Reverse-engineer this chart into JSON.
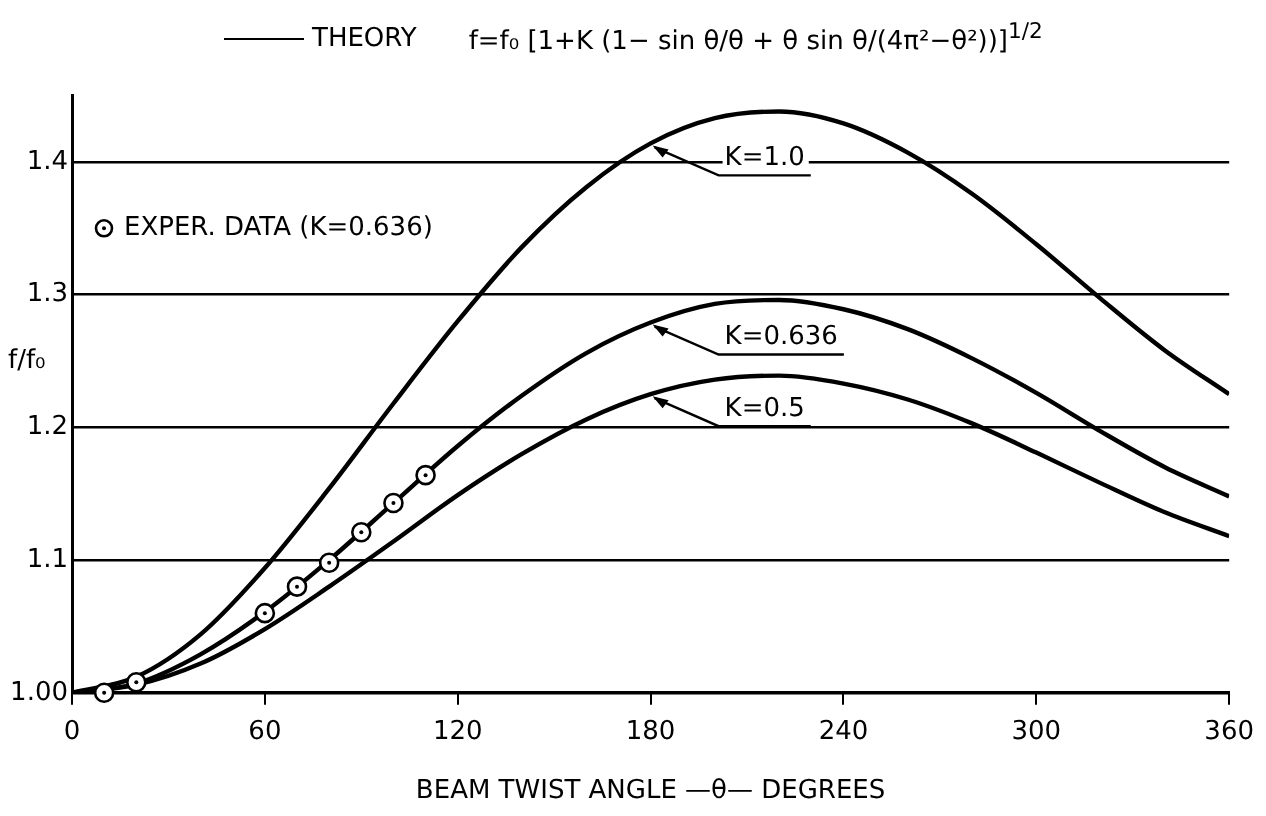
{
  "chart_data": {
    "type": "line",
    "title": "THEORY",
    "subtitle": "f=f₀ [1+K (1− sin θ/θ + θ sin θ/(4π²−θ²))]$^{1/2}$",
    "xlabel": "BEAM TWIST ANGLE —θ— DEGREES",
    "ylabel": "f/f₀",
    "xlim": [
      0,
      360
    ],
    "xticks": [
      0,
      60,
      120,
      180,
      240,
      300,
      360
    ],
    "ylim": [
      1.0,
      1.45
    ],
    "yticks": [
      {
        "value": 1.0,
        "label": "1.00"
      },
      1.1,
      1.2,
      1.3,
      1.4
    ],
    "grid": "y",
    "legend": "top left",
    "series": [
      {
        "name": "K=1.0",
        "marker": "none",
        "color": "#000000",
        "x": [
          0,
          20,
          40,
          60,
          80,
          100,
          120,
          140,
          160,
          180,
          200,
          220,
          240,
          260,
          280,
          300,
          320,
          340,
          360
        ],
        "values": [
          1.0,
          1.012,
          1.044,
          1.094,
          1.154,
          1.218,
          1.28,
          1.336,
          1.381,
          1.414,
          1.433,
          1.438,
          1.429,
          1.407,
          1.376,
          1.338,
          1.297,
          1.258,
          1.225
        ]
      },
      {
        "name": "K=0.636",
        "marker": "none",
        "color": "#000000",
        "x": [
          0,
          20,
          40,
          60,
          80,
          100,
          120,
          140,
          160,
          180,
          200,
          220,
          240,
          260,
          280,
          300,
          320,
          340,
          360
        ],
        "values": [
          1.0,
          1.007,
          1.029,
          1.061,
          1.1,
          1.143,
          1.186,
          1.224,
          1.256,
          1.279,
          1.293,
          1.296,
          1.289,
          1.274,
          1.252,
          1.226,
          1.197,
          1.17,
          1.148
        ]
      },
      {
        "name": "K=0.5",
        "marker": "none",
        "color": "#000000",
        "x": [
          0,
          20,
          40,
          60,
          80,
          100,
          120,
          140,
          160,
          180,
          200,
          220,
          240,
          260,
          280,
          300,
          320,
          340,
          360
        ],
        "values": [
          1.0,
          1.006,
          1.022,
          1.048,
          1.08,
          1.114,
          1.149,
          1.18,
          1.206,
          1.225,
          1.236,
          1.239,
          1.233,
          1.221,
          1.203,
          1.181,
          1.158,
          1.136,
          1.118
        ]
      },
      {
        "name": "EXPER. DATA (K=0.636)",
        "type": "scatter",
        "marker": "circle",
        "color": "#000000",
        "x": [
          10,
          20,
          60,
          70,
          80,
          90,
          100,
          110
        ],
        "values": [
          1.0,
          1.008,
          1.06,
          1.08,
          1.098,
          1.121,
          1.143,
          1.164
        ]
      }
    ]
  }
}
